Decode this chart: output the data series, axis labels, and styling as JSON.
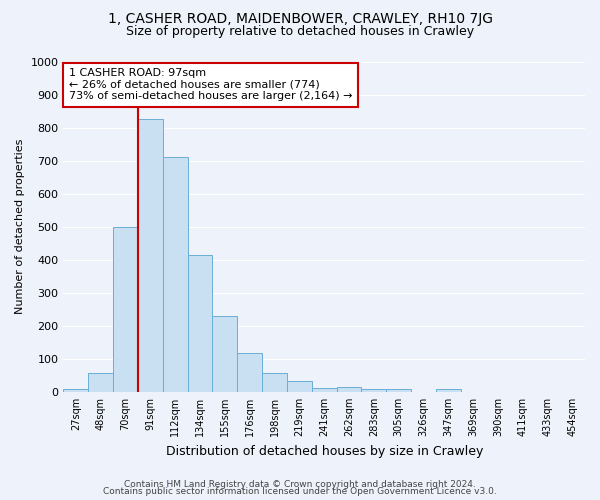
{
  "title": "1, CASHER ROAD, MAIDENBOWER, CRAWLEY, RH10 7JG",
  "subtitle": "Size of property relative to detached houses in Crawley",
  "xlabel": "Distribution of detached houses by size in Crawley",
  "ylabel": "Number of detached properties",
  "footer1": "Contains HM Land Registry data © Crown copyright and database right 2024.",
  "footer2": "Contains public sector information licensed under the Open Government Licence v3.0.",
  "bin_labels": [
    "27sqm",
    "48sqm",
    "70sqm",
    "91sqm",
    "112sqm",
    "134sqm",
    "155sqm",
    "176sqm",
    "198sqm",
    "219sqm",
    "241sqm",
    "262sqm",
    "283sqm",
    "305sqm",
    "326sqm",
    "347sqm",
    "369sqm",
    "390sqm",
    "411sqm",
    "433sqm",
    "454sqm"
  ],
  "bar_values": [
    8,
    57,
    500,
    825,
    710,
    415,
    230,
    117,
    57,
    33,
    13,
    14,
    10,
    8,
    1,
    8,
    0,
    0,
    0,
    0,
    0
  ],
  "bar_color": "#c9dff2",
  "bar_edge_color": "#6aaed6",
  "annotation_text": "1 CASHER ROAD: 97sqm\n← 26% of detached houses are smaller (774)\n73% of semi-detached houses are larger (2,164) →",
  "annotation_box_color": "#ffffff",
  "annotation_box_edge": "#cc0000",
  "vline_color": "#cc0000",
  "vline_bin_index": 3,
  "ylim": [
    0,
    1000
  ],
  "yticks": [
    0,
    100,
    200,
    300,
    400,
    500,
    600,
    700,
    800,
    900,
    1000
  ],
  "background_color": "#eef2fa",
  "grid_color": "#ffffff",
  "title_fontsize": 10,
  "subtitle_fontsize": 9
}
